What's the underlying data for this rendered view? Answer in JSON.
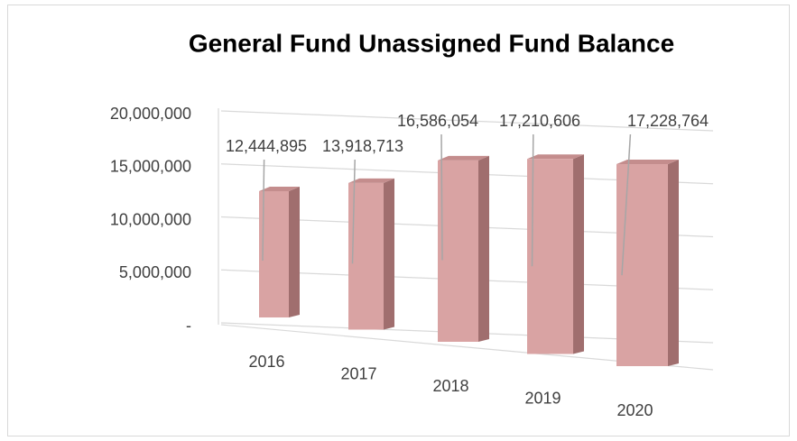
{
  "chart_data": {
    "type": "bar3d",
    "title": "General Fund Unassigned Fund Balance",
    "categories": [
      "2016",
      "2017",
      "2018",
      "2019",
      "2020"
    ],
    "values": [
      12444895,
      13918713,
      16586054,
      17210606,
      17228764
    ],
    "value_labels": [
      "12,444,895",
      "13,918,713",
      "16,586,054",
      "17,210,606",
      "17,228,764"
    ],
    "color": "#d9a3a3",
    "ylim": [
      0,
      20000000
    ],
    "yticks": [
      {
        "value": 0,
        "label": "-"
      },
      {
        "value": 5000000,
        "label": "5,000,000"
      },
      {
        "value": 10000000,
        "label": "10,000,000"
      },
      {
        "value": 15000000,
        "label": "15,000,000"
      },
      {
        "value": 20000000,
        "label": "20,000,000"
      }
    ],
    "grid": true
  }
}
